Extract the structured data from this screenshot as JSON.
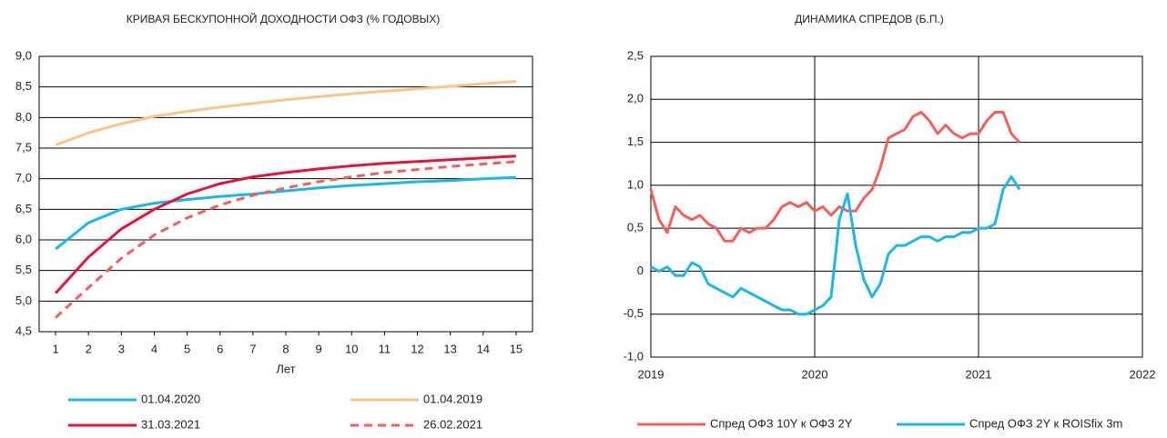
{
  "chart_data": [
    {
      "type": "line",
      "title": "КРИВАЯ БЕСКУПОННОЙ ДОХОДНОСТИ ОФЗ (% ГОДОВЫХ)",
      "xlabel": "Лет",
      "x": [
        1,
        2,
        3,
        4,
        5,
        6,
        7,
        8,
        9,
        10,
        11,
        12,
        13,
        14,
        15
      ],
      "xlim": [
        0.5,
        15.5
      ],
      "xticks": [
        1,
        2,
        3,
        4,
        5,
        6,
        7,
        8,
        9,
        10,
        11,
        12,
        13,
        14,
        15
      ],
      "ylim": [
        4.5,
        9.0
      ],
      "yticks": [
        {
          "value": 4.5,
          "label": "4,5"
        },
        {
          "value": 5.0,
          "label": "5,0"
        },
        {
          "value": 5.5,
          "label": "5,5"
        },
        {
          "value": 6.0,
          "label": "6,0"
        },
        {
          "value": 6.5,
          "label": "6,5"
        },
        {
          "value": 7.0,
          "label": "7,0"
        },
        {
          "value": 7.5,
          "label": "7,5"
        },
        {
          "value": 8.0,
          "label": "8,0"
        },
        {
          "value": 8.5,
          "label": "8,5"
        },
        {
          "value": 9.0,
          "label": "9,0"
        }
      ],
      "grid": "y",
      "legend": "bottom",
      "series": [
        {
          "name": "01.04.2020",
          "color": "#1fb6e3",
          "values": [
            5.85,
            6.28,
            6.5,
            6.6,
            6.66,
            6.71,
            6.75,
            6.8,
            6.85,
            6.89,
            6.92,
            6.95,
            6.97,
            7.0,
            7.02
          ]
        },
        {
          "name": "01.04.2019",
          "color": "#f8c68c",
          "values": [
            7.55,
            7.75,
            7.9,
            8.02,
            8.1,
            8.17,
            8.23,
            8.29,
            8.34,
            8.39,
            8.43,
            8.47,
            8.51,
            8.55,
            8.59
          ]
        },
        {
          "name": "31.03.2021",
          "color": "#e0153c",
          "values": [
            5.13,
            5.72,
            6.18,
            6.5,
            6.75,
            6.92,
            7.03,
            7.1,
            7.16,
            7.21,
            7.25,
            7.28,
            7.31,
            7.34,
            7.37
          ]
        },
        {
          "name": "26.02.2021",
          "color": "#f0605c",
          "dashed": true,
          "values": [
            4.73,
            5.22,
            5.7,
            6.08,
            6.36,
            6.57,
            6.73,
            6.85,
            6.95,
            7.03,
            7.1,
            7.15,
            7.2,
            7.24,
            7.28
          ]
        }
      ]
    },
    {
      "type": "line",
      "title": "ДИНАМИКА СПРЕДОВ (Б.П.)",
      "x": [
        2019,
        2019.05,
        2019.1,
        2019.15,
        2019.2,
        2019.25,
        2019.3,
        2019.35,
        2019.4,
        2019.45,
        2019.5,
        2019.55,
        2019.6,
        2019.65,
        2019.7,
        2019.75,
        2019.8,
        2019.85,
        2019.9,
        2019.95,
        2020,
        2020.05,
        2020.1,
        2020.15,
        2020.2,
        2020.25,
        2020.3,
        2020.35,
        2020.4,
        2020.45,
        2020.5,
        2020.55,
        2020.6,
        2020.65,
        2020.7,
        2020.75,
        2020.8,
        2020.85,
        2020.9,
        2020.95,
        2021,
        2021.05,
        2021.1,
        2021.15,
        2021.2,
        2021.25
      ],
      "xlim": [
        2019,
        2022
      ],
      "xticks": [
        2019,
        2020,
        2021,
        2022
      ],
      "ylim": [
        -1.0,
        2.5
      ],
      "yticks": [
        {
          "value": -1.0,
          "label": "-1,0"
        },
        {
          "value": -0.5,
          "label": "-0,5"
        },
        0,
        {
          "value": 0.5,
          "label": "0,5"
        },
        {
          "value": 1.0,
          "label": "1,0"
        },
        {
          "value": 1.5,
          "label": "1,5"
        },
        {
          "value": 2.0,
          "label": "2,0"
        },
        {
          "value": 2.5,
          "label": "2,5"
        }
      ],
      "grid": "both",
      "legend": "bottom",
      "series": [
        {
          "name": "Спред ОФЗ 10Y к ОФЗ 2Y",
          "color": "#f0605c",
          "values": [
            0.95,
            0.6,
            0.45,
            0.75,
            0.65,
            0.6,
            0.65,
            0.55,
            0.5,
            0.35,
            0.35,
            0.5,
            0.45,
            0.5,
            0.5,
            0.6,
            0.75,
            0.8,
            0.75,
            0.8,
            0.7,
            0.75,
            0.65,
            0.75,
            0.7,
            0.7,
            0.85,
            0.95,
            1.2,
            1.55,
            1.6,
            1.65,
            1.8,
            1.85,
            1.75,
            1.6,
            1.7,
            1.6,
            1.55,
            1.6,
            1.6,
            1.75,
            1.85,
            1.85,
            1.6,
            1.5
          ]
        },
        {
          "name": "Спред ОФЗ 2Y к ROISfix 3m",
          "color": "#1fb6e3",
          "values": [
            0.05,
            0,
            0.05,
            -0.05,
            -0.05,
            0.1,
            0.05,
            -0.15,
            -0.2,
            -0.25,
            -0.3,
            -0.2,
            -0.25,
            -0.3,
            -0.35,
            -0.4,
            -0.45,
            -0.45,
            -0.5,
            -0.5,
            -0.45,
            -0.4,
            -0.3,
            0.6,
            0.9,
            0.3,
            -0.1,
            -0.3,
            -0.15,
            0.2,
            0.3,
            0.3,
            0.35,
            0.4,
            0.4,
            0.35,
            0.4,
            0.4,
            0.45,
            0.45,
            0.5,
            0.5,
            0.55,
            0.95,
            1.1,
            0.95
          ]
        }
      ]
    }
  ]
}
